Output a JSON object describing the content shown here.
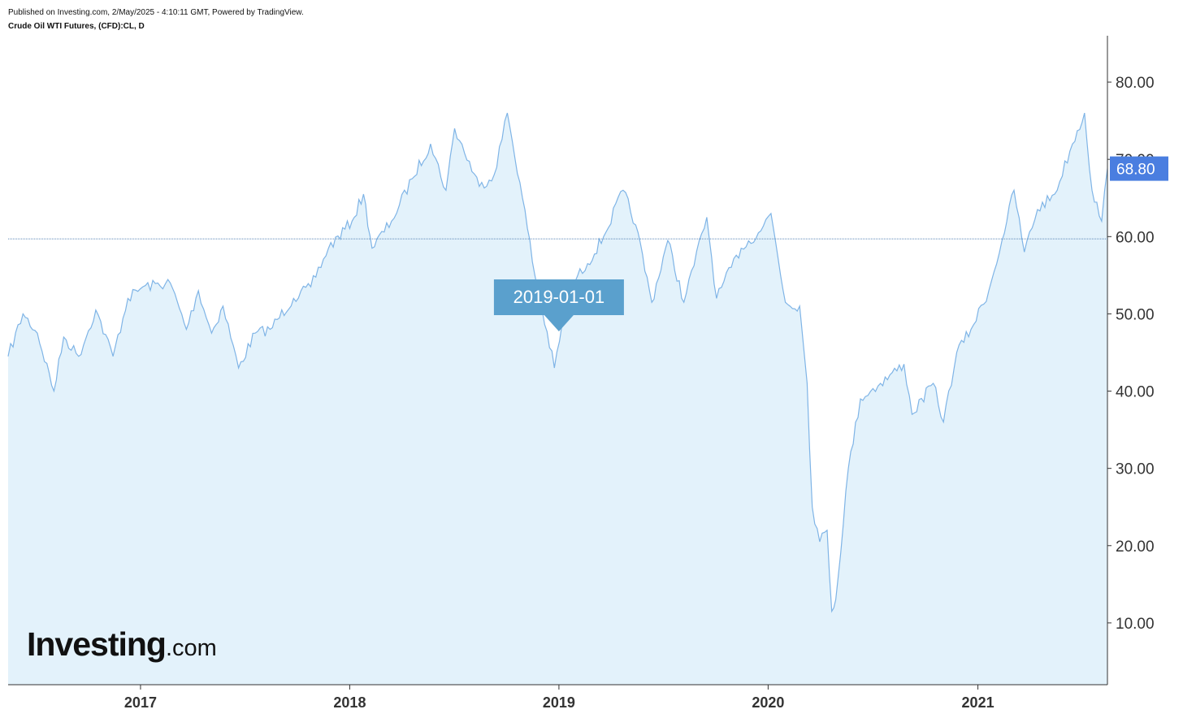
{
  "header": {
    "published": "Published on Investing.com, 2/May/2025 - 4:10:11 GMT, Powered by TradingView.",
    "instrument": "Crude Oil WTI Futures, (CFD):CL, D"
  },
  "logo": {
    "main": "Investing",
    "suffix": ".com"
  },
  "tooltip": {
    "label": "2019-01-01",
    "date": "2019-01-01"
  },
  "price_label": {
    "value": "68.80",
    "value_num": 68.8
  },
  "colors": {
    "line": "#7fb4e6",
    "fill": "#e3f2fb",
    "tooltip_bg": "#5aa0cd",
    "price_bg": "#4a7ee0",
    "crosshair": "#5b86b6",
    "axis": "#333333"
  },
  "chart_data": {
    "type": "area",
    "title": "Crude Oil WTI Futures, (CFD):CL, D",
    "xlabel": "",
    "ylabel": "",
    "ylim": [
      2,
      86
    ],
    "xlim": [
      "2016-05-15",
      "2021-08-15"
    ],
    "grid": false,
    "y_ticks": [
      "10.00",
      "20.00",
      "30.00",
      "40.00",
      "50.00",
      "60.00",
      "70.00",
      "80.00"
    ],
    "x_ticks": [
      "2017",
      "2018",
      "2019",
      "2020",
      "2021"
    ],
    "x_tick_dates": [
      "2017-01-01",
      "2018-01-01",
      "2019-01-01",
      "2020-01-01",
      "2021-01-01"
    ],
    "crosshair_price": 59.7,
    "series": [
      {
        "dates": [
          "2016-05-15",
          "2016-06-10",
          "2016-07-05",
          "2016-08-03",
          "2016-08-20",
          "2016-09-15",
          "2016-10-15",
          "2016-11-14",
          "2016-12-10",
          "2017-01-05",
          "2017-02-22",
          "2017-03-22",
          "2017-04-12",
          "2017-05-05",
          "2017-05-25",
          "2017-06-21",
          "2017-07-20",
          "2017-08-15",
          "2017-09-25",
          "2017-10-25",
          "2017-11-25",
          "2018-01-05",
          "2018-01-25",
          "2018-02-09",
          "2018-03-15",
          "2018-04-20",
          "2018-05-22",
          "2018-06-18",
          "2018-07-03",
          "2018-08-15",
          "2018-09-10",
          "2018-10-03",
          "2018-10-25",
          "2018-11-20",
          "2018-12-24",
          "2019-01-20",
          "2019-02-20",
          "2019-03-20",
          "2019-04-23",
          "2019-05-15",
          "2019-06-12",
          "2019-07-10",
          "2019-08-07",
          "2019-09-16",
          "2019-10-03",
          "2019-11-15",
          "2019-12-15",
          "2020-01-06",
          "2020-01-31",
          "2020-02-25",
          "2020-03-09",
          "2020-03-18",
          "2020-03-31",
          "2020-04-13",
          "2020-04-21",
          "2020-04-28",
          "2020-05-20",
          "2020-06-10",
          "2020-07-15",
          "2020-08-25",
          "2020-09-08",
          "2020-10-15",
          "2020-11-02",
          "2020-11-25",
          "2020-12-20",
          "2021-01-20",
          "2021-02-12",
          "2021-03-05",
          "2021-03-23",
          "2021-04-15",
          "2021-05-15",
          "2021-06-15",
          "2021-07-06",
          "2021-07-19",
          "2021-08-05",
          "2021-08-15"
        ],
        "values": [
          44.5,
          50.0,
          47.5,
          40.0,
          47.0,
          44.5,
          50.5,
          44.5,
          52.0,
          53.5,
          54.0,
          48.0,
          53.0,
          47.5,
          51.0,
          43.0,
          47.5,
          48.0,
          52.0,
          53.5,
          58.5,
          62.0,
          65.5,
          58.5,
          62.0,
          67.5,
          72.0,
          66.0,
          74.0,
          66.5,
          68.0,
          76.0,
          67.0,
          55.0,
          43.0,
          53.5,
          56.5,
          60.0,
          66.0,
          61.5,
          51.5,
          59.5,
          51.5,
          62.5,
          52.0,
          58.5,
          60.5,
          63.0,
          51.5,
          51.0,
          41.0,
          25.0,
          20.5,
          22.0,
          11.5,
          13.0,
          30.0,
          39.0,
          41.0,
          43.5,
          37.0,
          41.0,
          36.0,
          45.0,
          48.0,
          53.0,
          59.5,
          66.0,
          58.0,
          63.5,
          65.5,
          72.0,
          76.0,
          66.0,
          62.0,
          68.8
        ]
      }
    ]
  }
}
